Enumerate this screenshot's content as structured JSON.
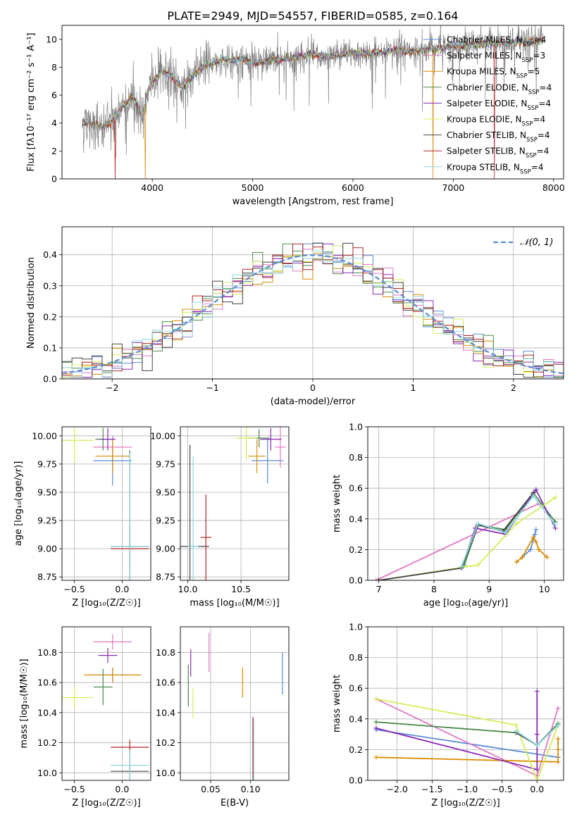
{
  "figure": {
    "title": "PLATE=2949, MJD=54557, FIBERID=0585, z=0.164"
  },
  "colors": {
    "grid": "#b0b0b0",
    "axis": "#000000",
    "gauss": "#5b8bd6"
  },
  "models": [
    {
      "name": "Chabrier MILES",
      "nssp": "4",
      "color": "#5b8bd6"
    },
    {
      "name": "Salpeter MILES",
      "nssp": "3",
      "color": "#e377c2"
    },
    {
      "name": "Kroupa MILES",
      "nssp": "5",
      "color": "#d98b00"
    },
    {
      "name": "Chabrier ELODIE",
      "nssp": "4",
      "color": "#4a8a4a"
    },
    {
      "name": "Salpeter ELODIE",
      "nssp": "4",
      "color": "#8a2ab5"
    },
    {
      "name": "Kroupa ELODIE",
      "nssp": "4",
      "color": "#d0ee55"
    },
    {
      "name": "Chabrier STELIB",
      "nssp": "4",
      "color": "#444444"
    },
    {
      "name": "Salpeter STELIB",
      "nssp": "4",
      "color": "#b22222"
    },
    {
      "name": "Kroupa STELIB",
      "nssp": "4",
      "color": "#8ad8e0"
    }
  ],
  "chart_data": [
    {
      "id": "spectrum",
      "type": "line",
      "xlabel": "wavelength [Angstrom, rest frame]",
      "ylabel": "Flux [fλ10⁻¹⁷ erg cm⁻² s⁻¹ A⁻¹]",
      "xlim": [
        3100,
        8100
      ],
      "ylim": [
        0,
        11
      ],
      "xticks": [
        4000,
        5000,
        6000,
        7000,
        8000
      ],
      "yticks": [
        0,
        2,
        4,
        6,
        8,
        10
      ],
      "data_color": "#808080",
      "data_x": [
        3300,
        3350,
        3400,
        3450,
        3500,
        3550,
        3600,
        3650,
        3700,
        3750,
        3800,
        3850,
        3900,
        3950,
        4000,
        4100,
        4200,
        4300,
        4400,
        4500,
        4600,
        4700,
        4800,
        4900,
        5000,
        5200,
        5400,
        5600,
        5800,
        6000,
        6200,
        6400,
        6600,
        6800,
        7000,
        7200,
        7400,
        7600,
        7800,
        7900
      ],
      "data_y": [
        3.9,
        4.1,
        3.8,
        3.9,
        3.7,
        3.9,
        4.1,
        4.6,
        5.2,
        5.5,
        5.9,
        5.4,
        4.4,
        6.1,
        7.0,
        7.7,
        7.3,
        6.5,
        7.4,
        8.0,
        8.3,
        8.6,
        8.5,
        8.6,
        8.3,
        8.5,
        8.7,
        8.9,
        8.8,
        9.0,
        9.0,
        9.2,
        9.1,
        9.3,
        9.5,
        9.6,
        9.7,
        9.8,
        9.9,
        10.0
      ],
      "model_drops": [
        {
          "x": 3630,
          "model": 7
        },
        {
          "x": 3930,
          "model": 2
        },
        {
          "x": 6800,
          "model": 2
        },
        {
          "x": 7410,
          "model": 7
        }
      ],
      "legend": "upper-right"
    },
    {
      "id": "residuals",
      "type": "histogram",
      "xlabel": "(data-model)/error",
      "ylabel": "Normed distribution",
      "xlim": [
        -2.5,
        2.5
      ],
      "ylim": [
        0,
        0.49
      ],
      "xticks": [
        -2,
        -1,
        0,
        1,
        2
      ],
      "yticks": [
        0,
        0.1,
        0.2,
        0.3,
        0.4
      ],
      "bin_width": 0.1,
      "legend_label": "𝒩(0, 1)",
      "legend": "upper-right",
      "grid": true
    },
    {
      "id": "age_vs_Z",
      "type": "errorbar",
      "xlabel": "Z [log₁₀(Z/Z☉)]",
      "ylabel": "age  [log₁₀(age/yr)]",
      "xlim": [
        -0.63,
        0.3
      ],
      "ylim": [
        8.72,
        10.08
      ],
      "xticks": [
        -0.5,
        0.0
      ],
      "yticks": [
        8.75,
        9.0,
        9.25,
        9.5,
        9.75,
        10.0
      ],
      "points": [
        {
          "model": 0,
          "x": -0.1,
          "y": 9.78,
          "ex": 0.2,
          "ey": 0.22
        },
        {
          "model": 1,
          "x": -0.1,
          "y": 9.9,
          "ex": 0.2,
          "ey": 0.1
        },
        {
          "model": 2,
          "x": -0.1,
          "y": 9.82,
          "ex": 0.18,
          "ey": 0.15
        },
        {
          "model": 3,
          "x": -0.2,
          "y": 9.97,
          "ex": 0.08,
          "ey": 0.1
        },
        {
          "model": 4,
          "x": -0.15,
          "y": 9.97,
          "ex": 0.08,
          "ey": 0.1
        },
        {
          "model": 5,
          "x": -0.5,
          "y": 9.96,
          "ex": 0.2,
          "ey": 0.2
        },
        {
          "model": 6,
          "x": 0.08,
          "y": 9.02,
          "ex": 0.2,
          "ey": 0.85
        },
        {
          "model": 7,
          "x": 0.08,
          "y": 9.0,
          "ex": 0.2,
          "ey": 0.2
        },
        {
          "model": 8,
          "x": 0.08,
          "y": 9.02,
          "ex": 0.2,
          "ey": 0.83
        }
      ]
    },
    {
      "id": "age_vs_mass",
      "type": "errorbar",
      "xlabel": "mass [log₁₀(M/M☉)]",
      "ylabel": "",
      "xlim": [
        9.93,
        10.95
      ],
      "ylim": [
        8.72,
        10.08
      ],
      "xticks": [
        10.0,
        10.5
      ],
      "yticks": [
        8.75,
        9.0,
        9.25,
        9.5,
        9.75,
        10.0
      ],
      "points": [
        {
          "model": 0,
          "x": 10.75,
          "y": 9.78,
          "ex": 0.15,
          "ey": 0.2
        },
        {
          "model": 1,
          "x": 10.87,
          "y": 9.9,
          "ex": 0.05,
          "ey": 0.18
        },
        {
          "model": 2,
          "x": 10.65,
          "y": 9.82,
          "ex": 0.08,
          "ey": 0.15
        },
        {
          "model": 3,
          "x": 10.67,
          "y": 9.98,
          "ex": 0.1,
          "ey": 0.08
        },
        {
          "model": 4,
          "x": 10.78,
          "y": 9.97,
          "ex": 0.1,
          "ey": 0.1
        },
        {
          "model": 5,
          "x": 10.55,
          "y": 9.98,
          "ex": 0.1,
          "ey": 0.2
        },
        {
          "model": 6,
          "x": 10.02,
          "y": 9.02,
          "ex": 0.18,
          "ey": 0.9
        },
        {
          "model": 7,
          "x": 10.17,
          "y": 9.1,
          "ex": 0.05,
          "ey": 0.38
        },
        {
          "model": 8,
          "x": 10.05,
          "y": 9.02,
          "ex": 0.05,
          "ey": 0.8
        }
      ]
    },
    {
      "id": "weight_vs_age",
      "type": "line",
      "xlabel": "age  [log₁₀(age/yr)]",
      "ylabel": "mass weight",
      "xlim": [
        6.8,
        10.35
      ],
      "ylim": [
        0,
        1.0
      ],
      "xticks": [
        7,
        8,
        9,
        10
      ],
      "yticks": [
        0,
        0.2,
        0.4,
        0.6,
        0.8,
        1.0
      ],
      "series": [
        {
          "model": 0,
          "x": [
            9.6,
            9.75,
            9.83,
            9.85
          ],
          "y": [
            0.15,
            0.2,
            0.3,
            0.33
          ]
        },
        {
          "model": 1,
          "x": [
            6.95,
            9.9
          ],
          "y": [
            0.0,
            0.5
          ]
        },
        {
          "model": 2,
          "x": [
            9.5,
            9.6,
            9.8,
            9.85,
            9.9,
            10.05
          ],
          "y": [
            0.12,
            0.15,
            0.28,
            0.25,
            0.2,
            0.15
          ]
        },
        {
          "model": 3,
          "x": [
            8.55,
            8.8,
            9.3,
            9.8,
            10.2
          ],
          "y": [
            0.1,
            0.36,
            0.33,
            0.57,
            0.38
          ]
        },
        {
          "model": 4,
          "x": [
            8.5,
            8.75,
            9.3,
            9.85,
            10.2
          ],
          "y": [
            0.08,
            0.34,
            0.3,
            0.59,
            0.34
          ]
        },
        {
          "model": 5,
          "x": [
            7.0,
            8.8,
            9.5,
            10.2
          ],
          "y": [
            0.0,
            0.1,
            0.37,
            0.54
          ]
        },
        {
          "model": 6,
          "x": [
            7.0,
            8.5,
            8.8,
            9.25,
            9.8
          ],
          "y": [
            0.0,
            0.08,
            0.36,
            0.32,
            0.57
          ]
        },
        {
          "model": 8,
          "x": [
            8.5,
            8.8,
            9.3,
            9.8,
            10.2
          ],
          "y": [
            0.09,
            0.37,
            0.31,
            0.55,
            0.36
          ]
        }
      ]
    },
    {
      "id": "mass_vs_Z",
      "type": "errorbar",
      "xlabel": "Z [log₁₀(Z/Z☉)]",
      "ylabel": "mass [log₁₀(M/M☉)]",
      "xlim": [
        -0.63,
        0.3
      ],
      "ylim": [
        9.95,
        10.97
      ],
      "xticks": [
        -0.5,
        0.0
      ],
      "yticks": [
        10.0,
        10.2,
        10.4,
        10.6,
        10.8
      ],
      "points": [
        {
          "model": 0,
          "x": -0.1,
          "y": 10.65,
          "ex": 0.2,
          "ey": 0.05
        },
        {
          "model": 1,
          "x": -0.1,
          "y": 10.87,
          "ex": 0.2,
          "ey": 0.05
        },
        {
          "model": 2,
          "x": -0.1,
          "y": 10.65,
          "ex": 0.3,
          "ey": 0.05
        },
        {
          "model": 3,
          "x": -0.2,
          "y": 10.57,
          "ex": 0.1,
          "ey": 0.12
        },
        {
          "model": 4,
          "x": -0.15,
          "y": 10.78,
          "ex": 0.1,
          "ey": 0.05
        },
        {
          "model": 5,
          "x": -0.5,
          "y": 10.5,
          "ex": 0.2,
          "ey": 0.07
        },
        {
          "model": 6,
          "x": 0.08,
          "y": 10.01,
          "ex": 0.2,
          "ey": 0.1
        },
        {
          "model": 7,
          "x": 0.08,
          "y": 10.17,
          "ex": 0.2,
          "ey": 0.05
        },
        {
          "model": 8,
          "x": 0.08,
          "y": 10.05,
          "ex": 0.2,
          "ey": 0.1
        }
      ]
    },
    {
      "id": "mass_vs_ebv",
      "type": "errorbar",
      "xlabel": "E(B-V)",
      "ylabel": "",
      "xlim": [
        0.012,
        0.148
      ],
      "ylim": [
        9.95,
        10.97
      ],
      "xticks": [
        0.05,
        0.1
      ],
      "yticks": [
        10.0,
        10.2,
        10.4,
        10.6,
        10.8
      ],
      "points": [
        {
          "model": 0,
          "x": 0.14,
          "y": 10.66,
          "ex": 0.0,
          "ey": 0.14
        },
        {
          "model": 1,
          "x": 0.048,
          "y": 10.8,
          "ex": 0.0,
          "ey": 0.13
        },
        {
          "model": 2,
          "x": 0.09,
          "y": 10.6,
          "ex": 0.0,
          "ey": 0.1
        },
        {
          "model": 3,
          "x": 0.022,
          "y": 10.58,
          "ex": 0.0,
          "ey": 0.14
        },
        {
          "model": 4,
          "x": 0.025,
          "y": 10.73,
          "ex": 0.0,
          "ey": 0.09
        },
        {
          "model": 5,
          "x": 0.028,
          "y": 10.46,
          "ex": 0.0,
          "ey": 0.1
        },
        {
          "model": 6,
          "x": 0.103,
          "y": 10.15,
          "ex": 0.0,
          "ey": 0.22
        },
        {
          "model": 7,
          "x": 0.103,
          "y": 10.17,
          "ex": 0.0,
          "ey": 0.2
        },
        {
          "model": 8,
          "x": 0.104,
          "y": 10.15,
          "ex": 0.0,
          "ey": 0.2
        }
      ]
    },
    {
      "id": "weight_vs_Z",
      "type": "line",
      "xlabel": "Z [log₁₀(Z/Z☉)]",
      "ylabel": "mass weight",
      "xlim": [
        -2.42,
        0.38
      ],
      "ylim": [
        0,
        1.0
      ],
      "xticks": [
        -2.0,
        -1.5,
        -1.0,
        -0.5,
        0.0
      ],
      "yticks": [
        0,
        0.2,
        0.4,
        0.6,
        0.8,
        1.0
      ],
      "series": [
        {
          "model": 0,
          "x": [
            -2.3,
            0.3,
            0.3
          ],
          "y": [
            0.33,
            0.15,
            0.15
          ]
        },
        {
          "model": 1,
          "x": [
            -2.3,
            0.0,
            0.3
          ],
          "y": [
            0.53,
            0.03,
            0.47
          ]
        },
        {
          "model": 2,
          "x": [
            -2.3,
            0.3,
            0.3,
            0.3
          ],
          "y": [
            0.15,
            0.12,
            0.2,
            0.27
          ]
        },
        {
          "model": 3,
          "x": [
            -2.3,
            -0.3,
            0.0,
            0.3
          ],
          "y": [
            0.38,
            0.31,
            0.23,
            0.37
          ]
        },
        {
          "model": 4,
          "x": [
            -2.3,
            0.0,
            0.0,
            0.0
          ],
          "y": [
            0.34,
            0.07,
            0.3,
            0.58
          ]
        },
        {
          "model": 5,
          "x": [
            -2.3,
            -0.3,
            0.0,
            0.3
          ],
          "y": [
            0.53,
            0.36,
            0.0,
            0.36
          ]
        },
        {
          "model": 6,
          "x": [
            -0.3,
            0.0,
            0.3
          ],
          "y": [
            0.31,
            0.23,
            0.36
          ]
        },
        {
          "model": 8,
          "x": [
            -0.3,
            0.0,
            0.3
          ],
          "y": [
            0.32,
            0.23,
            0.36
          ]
        }
      ]
    }
  ]
}
